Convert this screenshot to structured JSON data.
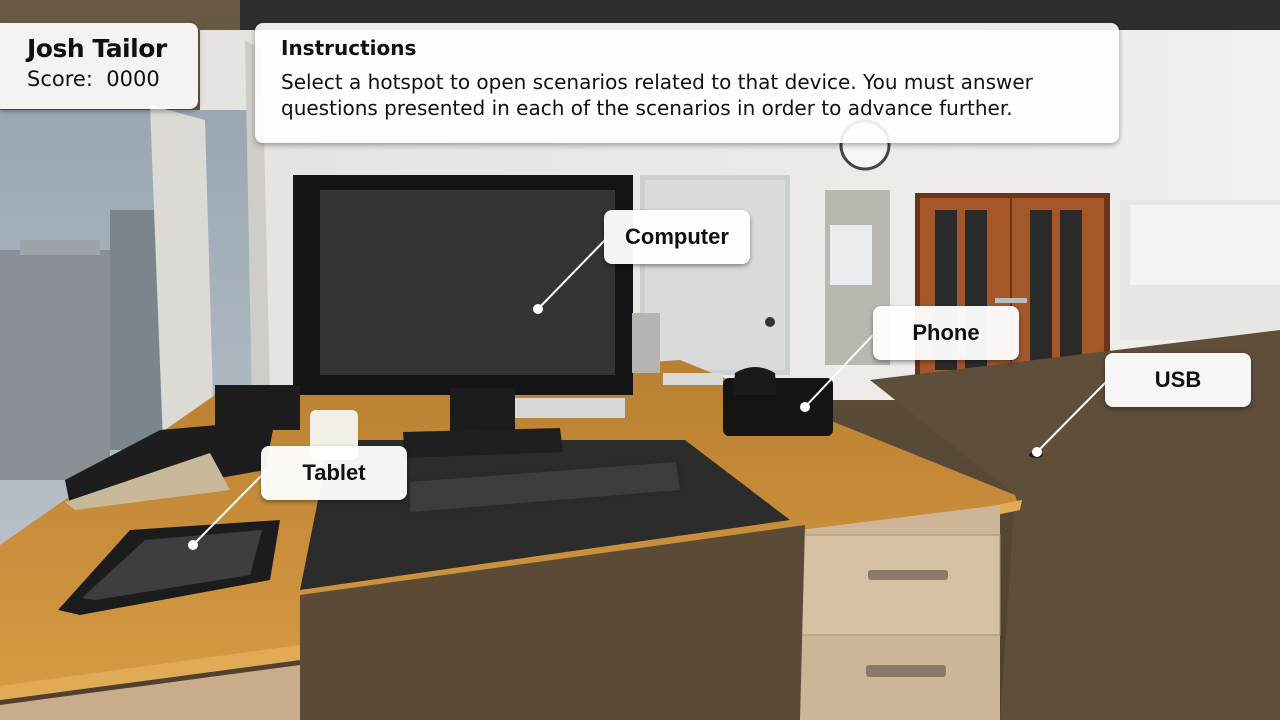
{
  "player": {
    "name": "Josh Tailor",
    "score_label": "Score:",
    "score_value": "0000"
  },
  "instructions": {
    "title": "Instructions",
    "body": "Select a hotspot to open scenarios related to that device. You must answer questions presented in each of the scenarios in order to advance further."
  },
  "hotspots": {
    "computer": "Computer",
    "phone": "Phone",
    "usb": "USB",
    "tablet": "Tablet"
  }
}
